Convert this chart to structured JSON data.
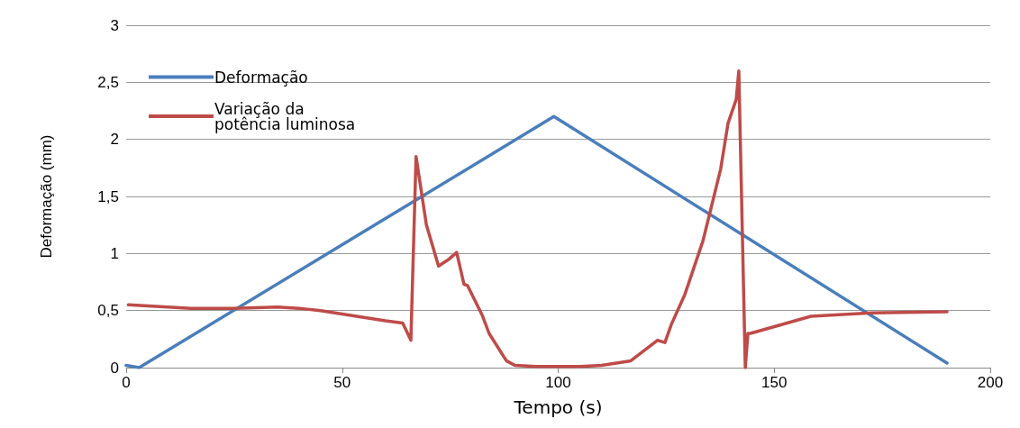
{
  "chart_data": {
    "type": "line",
    "xlabel": "Tempo (s)",
    "ylabel": "Deformação (mm)",
    "xlim": [
      0,
      200
    ],
    "xticks": [
      0,
      50,
      100,
      150,
      200
    ],
    "ylim": [
      0,
      3
    ],
    "yticks": [
      {
        "value": 0,
        "label": "0"
      },
      {
        "value": 0.5,
        "label": "0,5"
      },
      {
        "value": 1,
        "label": "1"
      },
      {
        "value": 1.5,
        "label": "1,5"
      },
      {
        "value": 2,
        "label": "2"
      },
      {
        "value": 2.5,
        "label": "2,5"
      },
      {
        "value": 3,
        "label": "3"
      }
    ],
    "grid": "y",
    "legend": "top left",
    "marker": "none",
    "line_style": "solid",
    "series": [
      {
        "name": "Deformação",
        "color": "#4a7ebb",
        "x": [
          0,
          1.5,
          3,
          99,
          190
        ],
        "values": [
          0.02,
          0.01,
          0,
          2.2,
          0.04
        ]
      },
      {
        "name": "Variação da potência luminosa",
        "color": "#be4b48",
        "x": [
          0.5,
          15,
          25,
          35,
          40,
          45,
          50,
          55,
          60,
          64,
          65.9,
          67.1,
          69.5,
          72.3,
          74.7,
          76.5,
          78.2,
          79,
          82.4,
          84,
          88,
          90,
          95,
          105,
          110,
          116.8,
          123,
          124.7,
          126.2,
          129.3,
          133.5,
          137.6,
          139.3,
          141.2,
          141.8,
          143.3,
          143.9,
          144.5,
          158.5,
          172.5,
          190
        ],
        "values": [
          0.55,
          0.52,
          0.52,
          0.53,
          0.52,
          0.5,
          0.47,
          0.44,
          0.41,
          0.39,
          0.24,
          1.85,
          1.25,
          0.89,
          0.95,
          1.01,
          0.73,
          0.72,
          0.46,
          0.3,
          0.06,
          0.02,
          0.01,
          0.01,
          0.02,
          0.06,
          0.24,
          0.22,
          0.38,
          0.64,
          1.11,
          1.74,
          2.14,
          2.35,
          2.6,
          0,
          0.3,
          0.3,
          0.45,
          0.48,
          0.49
        ]
      }
    ]
  }
}
